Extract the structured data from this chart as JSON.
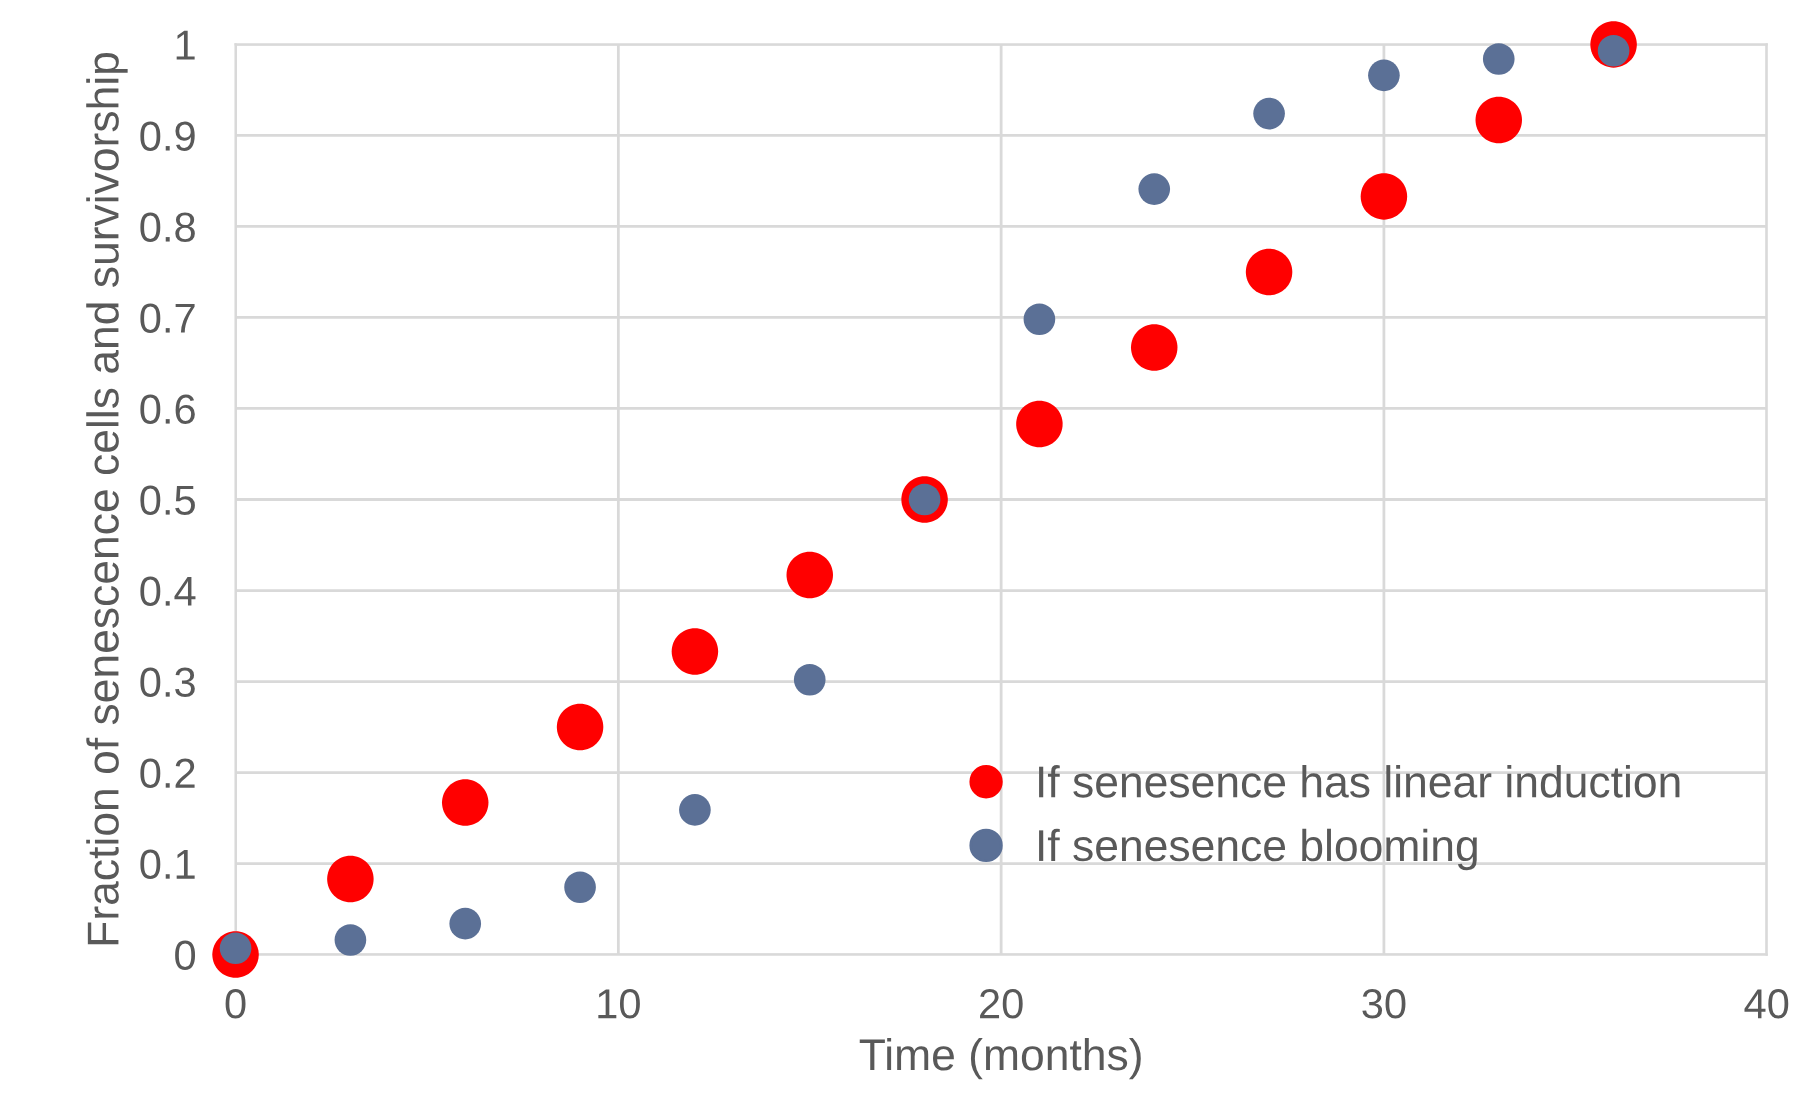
{
  "chart_data": {
    "type": "scatter",
    "xlabel": "Time (months)",
    "ylabel": "Fraction of senescence cells and survivorship",
    "x": [
      0,
      3,
      6,
      9,
      12,
      15,
      18,
      21,
      24,
      27,
      30,
      33,
      36
    ],
    "series": [
      {
        "name": "If senesence has linear induction",
        "color": "#ff0000",
        "values": [
          0,
          0.083,
          0.167,
          0.25,
          0.333,
          0.417,
          0.5,
          0.583,
          0.667,
          0.75,
          0.833,
          0.917,
          1.0
        ]
      },
      {
        "name": "If senesence blooming",
        "color": "#5b7096",
        "values": [
          0.007,
          0.016,
          0.034,
          0.074,
          0.159,
          0.302,
          0.5,
          0.698,
          0.841,
          0.924,
          0.966,
          0.984,
          0.993
        ]
      }
    ],
    "xlim": [
      0,
      40
    ],
    "ylim": [
      0,
      1
    ],
    "xticks": [
      0,
      10,
      20,
      30,
      40
    ],
    "yticks": [
      0,
      0.1,
      0.2,
      0.3,
      0.4,
      0.5,
      0.6,
      0.7,
      0.8,
      0.9,
      1
    ],
    "grid": true,
    "legend": "bottom right",
    "marker": "circle"
  }
}
